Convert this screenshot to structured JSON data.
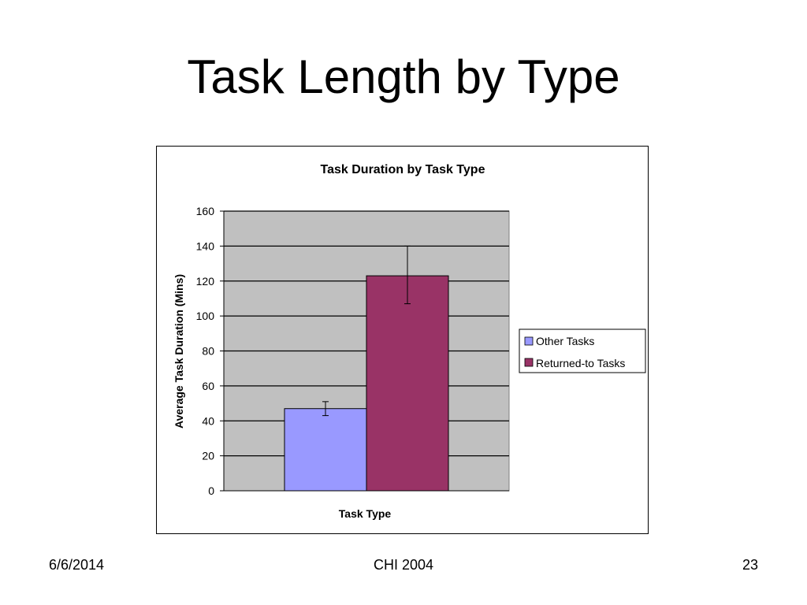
{
  "slide": {
    "title": "Task Length by Type",
    "footer_date": "6/6/2014",
    "footer_center": "CHI 2004",
    "page_number": "23"
  },
  "chart_data": {
    "type": "bar",
    "title": "Task Duration by Task Type",
    "xlabel": "Task Type",
    "ylabel": "Average Task Duration (Mins)",
    "ylim": [
      0,
      160
    ],
    "yticks": [
      0,
      20,
      40,
      60,
      80,
      100,
      120,
      140,
      160
    ],
    "grid": true,
    "legend_position": "right",
    "series": [
      {
        "name": "Other Tasks",
        "value": 47,
        "error_low": 43,
        "error_high": 51,
        "color": "#9999ff"
      },
      {
        "name": "Returned-to Tasks",
        "value": 123,
        "error_low": 107,
        "error_high": 140,
        "color": "#993366"
      }
    ],
    "plot_background": "#c0c0c0"
  }
}
